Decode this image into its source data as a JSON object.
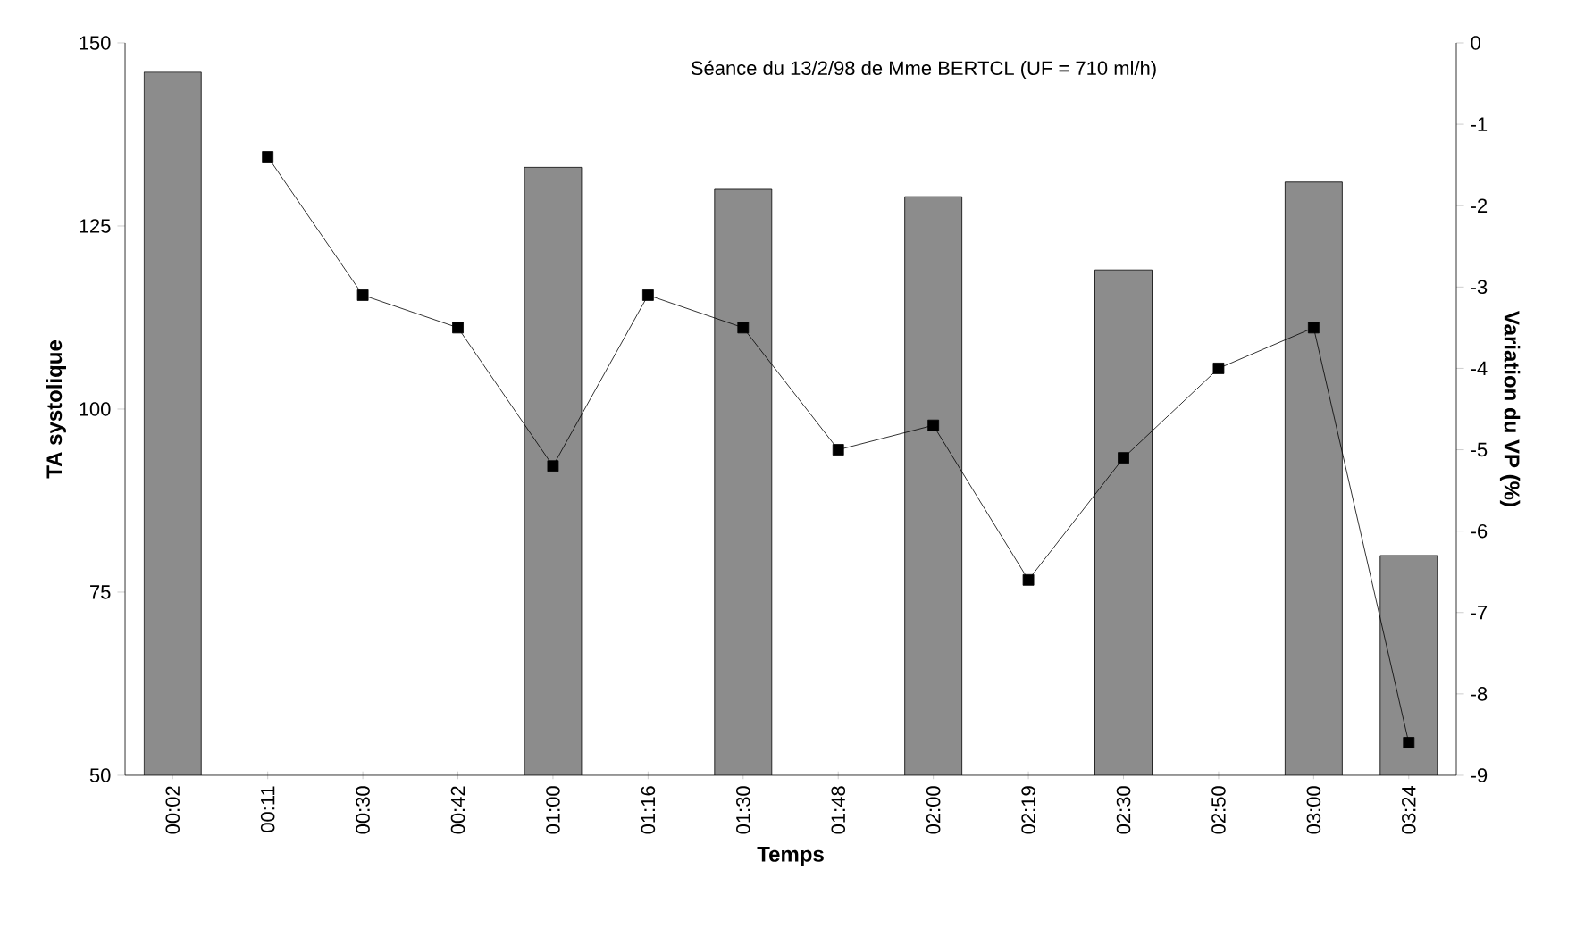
{
  "chart_data": {
    "type": "bar",
    "title": "Séance du 13/2/98 de Mme BERTCL (UF = 710 ml/h)",
    "xlabel": "Temps",
    "ylabel": "TA systolique",
    "y2label": "Variation du VP (%)",
    "categories": [
      "00:02",
      "00:11",
      "00:30",
      "00:42",
      "01:00",
      "01:16",
      "01:30",
      "01:48",
      "02:00",
      "02:19",
      "02:30",
      "02:50",
      "03:00",
      "03:24"
    ],
    "series": [
      {
        "color": "#8c8c8c",
        "values": [
          146,
          null,
          null,
          null,
          133,
          null,
          130,
          null,
          129,
          null,
          119,
          null,
          131,
          80
        ]
      },
      {
        "type": "line",
        "axis": "y2",
        "color": "#000000",
        "values": [
          null,
          -1.4,
          -3.1,
          -3.5,
          -5.2,
          -3.1,
          -3.5,
          -5.0,
          -4.7,
          -6.6,
          -5.1,
          -4.0,
          -3.5,
          -8.6
        ]
      }
    ],
    "ylim": [
      50,
      150
    ],
    "yticks": [
      50,
      75,
      100,
      125,
      150
    ],
    "y2lim": [
      -9,
      0
    ],
    "y2ticks": [
      -9,
      -8,
      -7,
      -6,
      -5,
      -4,
      -3,
      -2,
      -1,
      0
    ],
    "marker": "square",
    "grid": false
  }
}
